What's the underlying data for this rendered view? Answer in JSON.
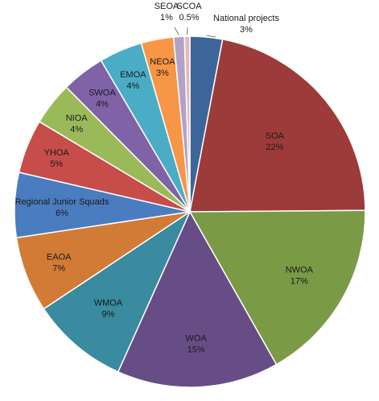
{
  "chart_data": {
    "type": "pie",
    "title": "",
    "start": "top, clockwise",
    "slices": [
      {
        "label": "National projects",
        "value": 3,
        "pct_label": "3%",
        "color": "#3C6699"
      },
      {
        "label": "SOA",
        "value": 22,
        "pct_label": "22%",
        "color": "#9C3B3A"
      },
      {
        "label": "NWOA",
        "value": 17,
        "pct_label": "17%",
        "color": "#7A9A46"
      },
      {
        "label": "WOA",
        "value": 15,
        "pct_label": "15%",
        "color": "#674D85"
      },
      {
        "label": "WMOA",
        "value": 9,
        "pct_label": "9%",
        "color": "#3A8AA0"
      },
      {
        "label": "EAOA",
        "value": 7,
        "pct_label": "7%",
        "color": "#D27B36"
      },
      {
        "label": "Regional Junior Squads",
        "value": 6,
        "pct_label": "6%",
        "color": "#4A7CC0"
      },
      {
        "label": "YHOA",
        "value": 5,
        "pct_label": "5%",
        "color": "#C64D4A"
      },
      {
        "label": "NIOA",
        "value": 4,
        "pct_label": "4%",
        "color": "#9ABA59"
      },
      {
        "label": "SWOA",
        "value": 4,
        "pct_label": "4%",
        "color": "#7F63A6"
      },
      {
        "label": "EMOA",
        "value": 4,
        "pct_label": "4%",
        "color": "#4BACC6"
      },
      {
        "label": "NEOA",
        "value": 3,
        "pct_label": "3%",
        "color": "#F79646"
      },
      {
        "label": "SEOA",
        "value": 1,
        "pct_label": "1%",
        "color": "#B3A2C7"
      },
      {
        "label": "SCOA",
        "value": 0.5,
        "pct_label": "0.5%",
        "color": "#E6B9B8"
      }
    ]
  }
}
